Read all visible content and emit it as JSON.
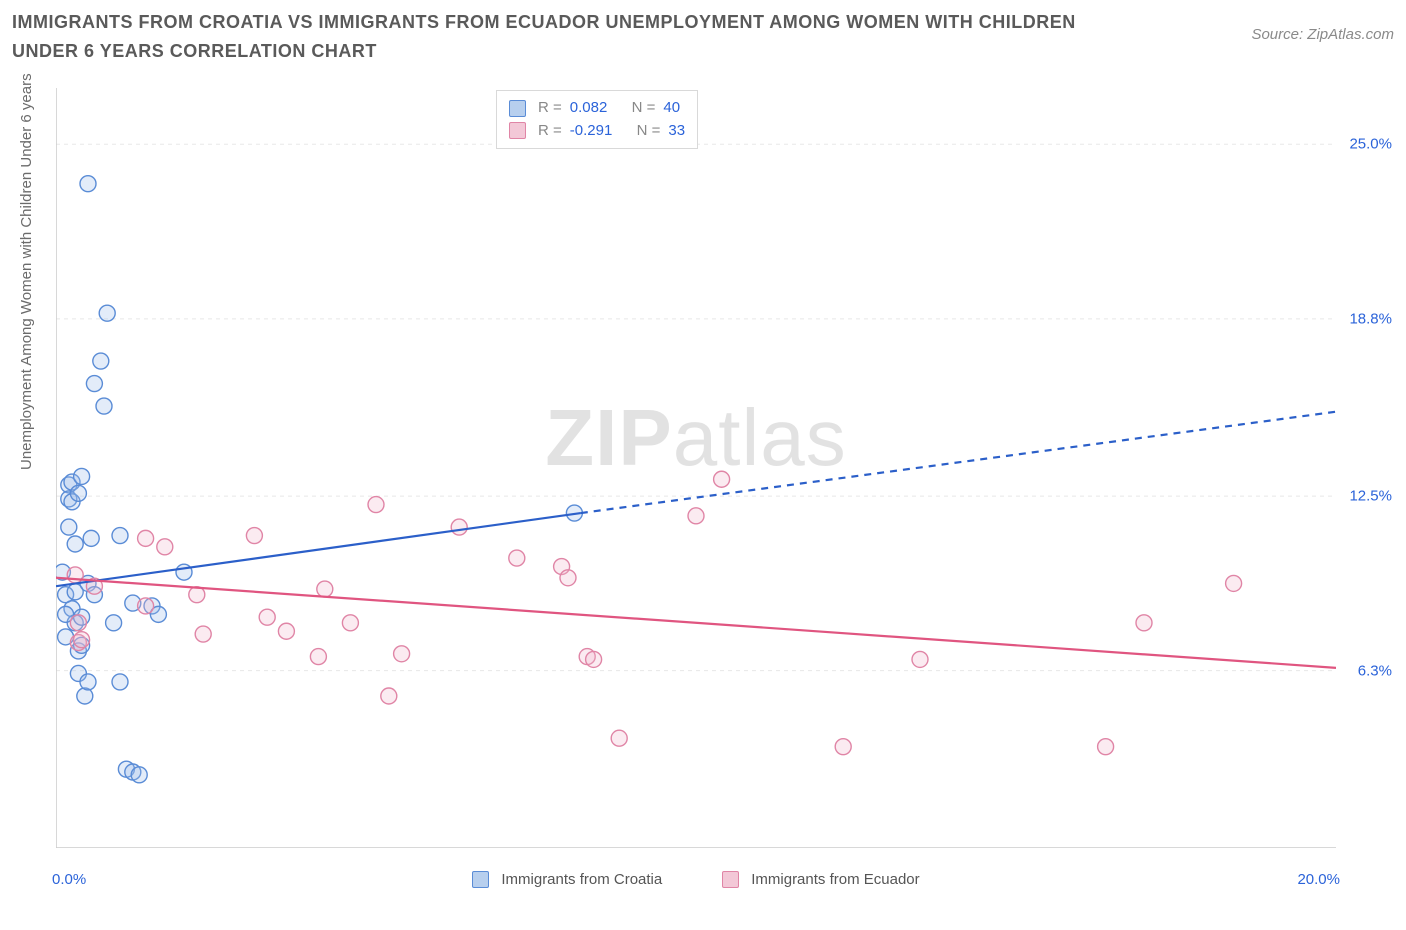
{
  "title": "IMMIGRANTS FROM CROATIA VS IMMIGRANTS FROM ECUADOR UNEMPLOYMENT AMONG WOMEN WITH CHILDREN UNDER 6 YEARS CORRELATION CHART",
  "source": "Source: ZipAtlas.com",
  "y_axis_label": "Unemployment Among Women with Children Under 6 years",
  "watermark_bold": "ZIP",
  "watermark_light": "atlas",
  "chart": {
    "type": "scatter",
    "xlim": [
      0,
      20
    ],
    "ylim": [
      0,
      27
    ],
    "x_axis_min_label": "0.0%",
    "x_axis_max_label": "20.0%",
    "background_color": "#ffffff",
    "grid_color": "#e8e8e8",
    "axis_color": "#cccccc",
    "tick_color": "#d8d8d8",
    "y_gridlines": [
      6.3,
      12.5,
      18.8,
      25.0
    ],
    "y_tick_labels": [
      "6.3%",
      "12.5%",
      "18.8%",
      "25.0%"
    ],
    "x_ticks": [
      2.5,
      5.0,
      7.5,
      10.0,
      12.5,
      15.0,
      17.5,
      20.0
    ],
    "marker_radius": 8,
    "marker_stroke_width": 1.4,
    "marker_fill_opacity": 0.28,
    "trend_line_width": 2.2,
    "series": [
      {
        "name": "Immigrants from Croatia",
        "color_stroke": "#5a8cd6",
        "color_fill": "#9bbce8",
        "trend_color": "#2b5fc9",
        "R": "0.082",
        "N": "40",
        "trend_solid": {
          "x1": 0.0,
          "y1": 9.3,
          "x2": 8.2,
          "y2": 11.9
        },
        "trend_dashed": {
          "x1": 8.2,
          "y1": 11.9,
          "x2": 20.0,
          "y2": 15.5
        },
        "points": [
          [
            0.1,
            9.8
          ],
          [
            0.15,
            9.0
          ],
          [
            0.15,
            7.5
          ],
          [
            0.2,
            12.9
          ],
          [
            0.2,
            12.4
          ],
          [
            0.2,
            11.4
          ],
          [
            0.25,
            13.0
          ],
          [
            0.25,
            12.3
          ],
          [
            0.25,
            8.5
          ],
          [
            0.3,
            10.8
          ],
          [
            0.3,
            9.1
          ],
          [
            0.3,
            8.0
          ],
          [
            0.35,
            7.0
          ],
          [
            0.35,
            6.2
          ],
          [
            0.4,
            8.2
          ],
          [
            0.4,
            7.2
          ],
          [
            0.45,
            5.4
          ],
          [
            0.5,
            23.6
          ],
          [
            0.5,
            9.4
          ],
          [
            0.5,
            5.9
          ],
          [
            0.55,
            11.0
          ],
          [
            0.6,
            16.5
          ],
          [
            0.6,
            9.0
          ],
          [
            0.7,
            17.3
          ],
          [
            0.75,
            15.7
          ],
          [
            0.8,
            19.0
          ],
          [
            0.9,
            8.0
          ],
          [
            1.0,
            11.1
          ],
          [
            1.0,
            5.9
          ],
          [
            1.1,
            2.8
          ],
          [
            1.2,
            2.7
          ],
          [
            1.3,
            2.6
          ],
          [
            1.2,
            8.7
          ],
          [
            1.5,
            8.6
          ],
          [
            1.6,
            8.3
          ],
          [
            2.0,
            9.8
          ],
          [
            0.35,
            12.6
          ],
          [
            0.4,
            13.2
          ],
          [
            0.15,
            8.3
          ],
          [
            8.1,
            11.9
          ]
        ]
      },
      {
        "name": "Immigrants from Ecuador",
        "color_stroke": "#e085a6",
        "color_fill": "#f0b8cc",
        "trend_color": "#e05580",
        "R": "-0.291",
        "N": "33",
        "trend_solid": {
          "x1": 0.0,
          "y1": 9.6,
          "x2": 20.0,
          "y2": 6.4
        },
        "trend_dashed": null,
        "points": [
          [
            0.3,
            9.7
          ],
          [
            0.35,
            8.0
          ],
          [
            0.35,
            7.3
          ],
          [
            0.4,
            7.4
          ],
          [
            0.6,
            9.3
          ],
          [
            1.4,
            11.0
          ],
          [
            1.4,
            8.6
          ],
          [
            1.7,
            10.7
          ],
          [
            2.2,
            9.0
          ],
          [
            2.3,
            7.6
          ],
          [
            3.1,
            11.1
          ],
          [
            3.3,
            8.2
          ],
          [
            3.6,
            7.7
          ],
          [
            4.1,
            6.8
          ],
          [
            4.2,
            9.2
          ],
          [
            4.6,
            8.0
          ],
          [
            5.0,
            12.2
          ],
          [
            5.2,
            5.4
          ],
          [
            5.4,
            6.9
          ],
          [
            6.3,
            11.4
          ],
          [
            7.2,
            10.3
          ],
          [
            7.9,
            10.0
          ],
          [
            8.0,
            9.6
          ],
          [
            8.3,
            6.8
          ],
          [
            8.4,
            6.7
          ],
          [
            8.8,
            3.9
          ],
          [
            10.0,
            11.8
          ],
          [
            10.4,
            13.1
          ],
          [
            12.3,
            3.6
          ],
          [
            13.5,
            6.7
          ],
          [
            16.4,
            3.6
          ],
          [
            17.0,
            8.0
          ],
          [
            18.4,
            9.4
          ]
        ]
      }
    ]
  },
  "stats_labels": {
    "R": "R =",
    "N": "N ="
  },
  "legend_bottom": [
    {
      "label": "Immigrants from Croatia",
      "fill": "#b7cfee",
      "stroke": "#5a8cd6"
    },
    {
      "label": "Immigrants from Ecuador",
      "fill": "#f3c8d7",
      "stroke": "#e085a6"
    }
  ]
}
